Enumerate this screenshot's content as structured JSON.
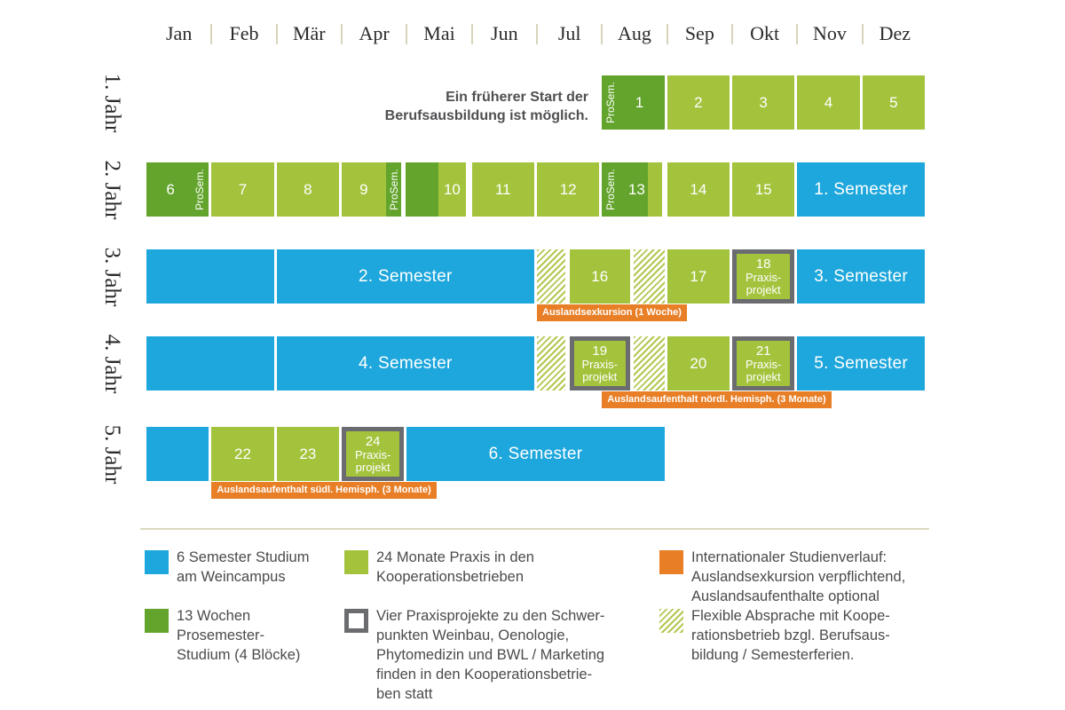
{
  "months": [
    "Jan",
    "Feb",
    "Mär",
    "Apr",
    "Mai",
    "Jun",
    "Jul",
    "Aug",
    "Sep",
    "Okt",
    "Nov",
    "Dez"
  ],
  "years": [
    "1. Jahr",
    "2. Jahr",
    "3. Jahr",
    "4. Jahr",
    "5. Jahr"
  ],
  "note": {
    "line1": "Ein früherer Start der",
    "line2": "Berufsausbildung ist möglich."
  },
  "colors": {
    "blue": "#1ea7dc",
    "light_green": "#a3c33d",
    "dark_green": "#63a42c",
    "orange": "#e87f27",
    "border_gray": "#6b6c6f",
    "separator_beige": "#d8d4bb"
  },
  "rows": [
    {
      "year": "1. Jahr",
      "blocks": [
        {
          "start": 7,
          "end": 8,
          "style": "dark",
          "label": "1",
          "vlabel": "ProSem.",
          "vside": "left",
          "labelPadLeft": 14
        },
        {
          "start": 8,
          "end": 9,
          "style": "green",
          "label": "2"
        },
        {
          "start": 9,
          "end": 10,
          "style": "green",
          "label": "3"
        },
        {
          "start": 10,
          "end": 11,
          "style": "green",
          "label": "4"
        },
        {
          "start": 11,
          "end": 12,
          "style": "green",
          "label": "5"
        }
      ],
      "tag": null
    },
    {
      "year": "2. Jahr",
      "blocks": [
        {
          "start": 0,
          "end": 1,
          "style": "dark",
          "label": "6",
          "vlabel": "ProSem.",
          "vside": "right",
          "labelPadRight": 16
        },
        {
          "start": 1,
          "end": 2,
          "style": "green",
          "label": "7"
        },
        {
          "start": 2,
          "end": 3,
          "style": "green",
          "label": "8"
        },
        {
          "start": 3,
          "end": 3.95,
          "style": "green",
          "label": "9",
          "labelPadRight": 17,
          "cap": {
            "side": "right",
            "w": 17,
            "style": "dark",
            "vlabel": "ProSem."
          }
        },
        {
          "start": 3.98,
          "end": 4.95,
          "style": "green",
          "label": "10",
          "labelPadLeft": 37,
          "cap": {
            "side": "left",
            "w": 37,
            "style": "dark"
          }
        },
        {
          "start": 5,
          "end": 6,
          "style": "green",
          "label": "11"
        },
        {
          "start": 6,
          "end": 7,
          "style": "green",
          "label": "12"
        },
        {
          "start": 7,
          "end": 7.97,
          "style": "dark",
          "label": "13",
          "vlabel": "ProSem.",
          "vside": "left",
          "labelPadLeft": 10,
          "cap": {
            "side": "right",
            "w": 16,
            "style": "green"
          }
        },
        {
          "start": 8,
          "end": 9,
          "style": "green",
          "label": "14"
        },
        {
          "start": 9,
          "end": 10,
          "style": "green",
          "label": "15"
        },
        {
          "start": 10,
          "end": 12,
          "style": "blue",
          "label": "1. Semester",
          "big": true
        }
      ],
      "tag": null
    },
    {
      "year": "3. Jahr",
      "blocks": [
        {
          "start": 0,
          "end": 2,
          "style": "blue"
        },
        {
          "start": 2,
          "end": 6,
          "style": "blue",
          "label": "2. Semester",
          "big": true
        },
        {
          "start": 6,
          "end": 6.48,
          "style": "hatch"
        },
        {
          "start": 6.5,
          "end": 7.47,
          "style": "green",
          "label": "16"
        },
        {
          "start": 7.49,
          "end": 8,
          "style": "hatch"
        },
        {
          "start": 8,
          "end": 9,
          "style": "green",
          "label": "17"
        },
        {
          "start": 9,
          "end": 10,
          "style": "project",
          "label": "18",
          "sub": [
            "Praxis-",
            "projekt"
          ]
        },
        {
          "start": 10,
          "end": 12,
          "style": "blue",
          "label": "3. Semester",
          "big": true
        }
      ],
      "tag": {
        "text": "Auslandsexkursion (1 Woche)",
        "start": 6
      }
    },
    {
      "year": "4. Jahr",
      "blocks": [
        {
          "start": 0,
          "end": 2,
          "style": "blue"
        },
        {
          "start": 2,
          "end": 6,
          "style": "blue",
          "label": "4. Semester",
          "big": true
        },
        {
          "start": 6,
          "end": 6.48,
          "style": "hatch"
        },
        {
          "start": 6.5,
          "end": 7.47,
          "style": "project",
          "label": "19",
          "sub": [
            "Praxis-",
            "projekt"
          ]
        },
        {
          "start": 7.49,
          "end": 8,
          "style": "hatch"
        },
        {
          "start": 8,
          "end": 9,
          "style": "green",
          "label": "20"
        },
        {
          "start": 9,
          "end": 10,
          "style": "project",
          "label": "21",
          "sub": [
            "Praxis-",
            "projekt"
          ]
        },
        {
          "start": 10,
          "end": 12,
          "style": "blue",
          "label": "5. Semester",
          "big": true
        }
      ],
      "tag": {
        "text": "Auslandsaufenthalt nördl. Hemisph. (3 Monate)",
        "start": 7
      }
    },
    {
      "year": "5. Jahr",
      "blocks": [
        {
          "start": 0,
          "end": 1,
          "style": "blue"
        },
        {
          "start": 1,
          "end": 2,
          "style": "green",
          "label": "22"
        },
        {
          "start": 2,
          "end": 3,
          "style": "green",
          "label": "23"
        },
        {
          "start": 3,
          "end": 4,
          "style": "project",
          "label": "24",
          "sub": [
            "Praxis-",
            "projekt"
          ]
        },
        {
          "start": 4,
          "end": 8,
          "style": "blue",
          "label": "6. Semester",
          "big": true
        }
      ],
      "tag": {
        "text": "Auslandsaufenthalt südl. Hemisph. (3 Monate)",
        "start": 1
      }
    }
  ],
  "legend": [
    {
      "swatch": "blue",
      "col": 0,
      "row": 0,
      "lines": [
        "6 Semester Studium",
        "am Weincampus"
      ]
    },
    {
      "swatch": "dark",
      "col": 0,
      "row": 1,
      "lines": [
        "13 Wochen",
        "Prosemester-",
        "Studium (4 Blöcke)"
      ]
    },
    {
      "swatch": "green",
      "col": 1,
      "row": 0,
      "lines": [
        "24 Monate Praxis in den",
        "Kooperationsbetrieben"
      ]
    },
    {
      "swatch": "projectsw",
      "col": 1,
      "row": 1,
      "lines": [
        "Vier Praxisprojekte zu den Schwer-",
        "punkten Weinbau, Oenologie,",
        "Phytomedizin und BWL / Marketing",
        "finden in den Kooperationsbetrie-",
        "ben statt"
      ]
    },
    {
      "swatch": "orange",
      "col": 2,
      "row": 0,
      "lines": [
        "Internationaler Studienverlauf:",
        "Auslandsexkursion verpflichtend,",
        "Auslandsaufenthalte optional"
      ]
    },
    {
      "swatch": "hatchsw",
      "col": 2,
      "row": 1,
      "lines": [
        "Flexible Absprache mit Koope-",
        "rationsbetrieb bzgl. Berufsaus-",
        "bildung / Semesterferien."
      ]
    }
  ]
}
